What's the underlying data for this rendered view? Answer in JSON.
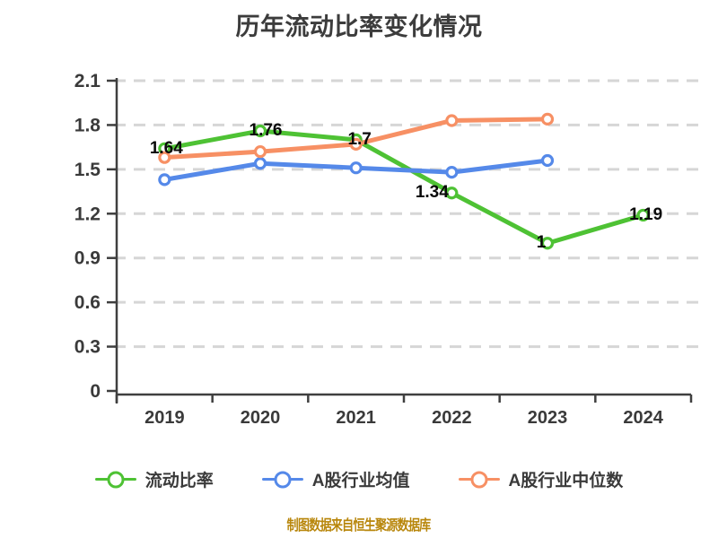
{
  "page": {
    "title": "历年流动比率变化情况",
    "footer_note": "制图数据来自恒生聚源数据库"
  },
  "colors": {
    "current_ratio_green": "#4EC234",
    "industry_avg_blue": "#5589E9",
    "industry_median_orange": "#F79064",
    "grid": "#D6D6D6",
    "axis": "#3F3F3F",
    "tick_text": "#3A3A3A",
    "point_label_text": "#0A0A0A",
    "footer_text": "#B8860B"
  },
  "legend": {
    "items": [
      {
        "label": "流动比率"
      },
      {
        "label": "A股行业均值"
      },
      {
        "label": "A股行业中位数"
      }
    ]
  },
  "chart_data": {
    "type": "line",
    "title": "历年流动比率变化情况",
    "categories": [
      "2019",
      "2020",
      "2021",
      "2022",
      "2023",
      "2024"
    ],
    "series": [
      {
        "name": "流动比率",
        "color": "#4EC234",
        "values": [
          1.64,
          1.76,
          1.7,
          1.34,
          1.0,
          1.19
        ],
        "point_labels": [
          "1.64",
          "1.76",
          "1.7",
          "1.34",
          "1",
          "1.19"
        ]
      },
      {
        "name": "A股行业均值",
        "color": "#5589E9",
        "values": [
          1.43,
          1.54,
          1.51,
          1.48,
          1.56,
          null
        ],
        "point_labels": null
      },
      {
        "name": "A股行业中位数",
        "color": "#F79064",
        "values": [
          1.58,
          1.62,
          1.67,
          1.83,
          1.84,
          null
        ],
        "point_labels": null
      }
    ],
    "xlabel": "",
    "ylabel": "",
    "ylim": [
      0,
      2.1
    ],
    "ytick_step": 0.3,
    "yticks": [
      0,
      0.3,
      0.6,
      0.9,
      1.2,
      1.5,
      1.8,
      2.1
    ],
    "grid": "horizontal-dashed",
    "marker": "white-filled-circle",
    "legend_position": "bottom",
    "source_note": "制图数据来自恒生聚源数据库"
  }
}
